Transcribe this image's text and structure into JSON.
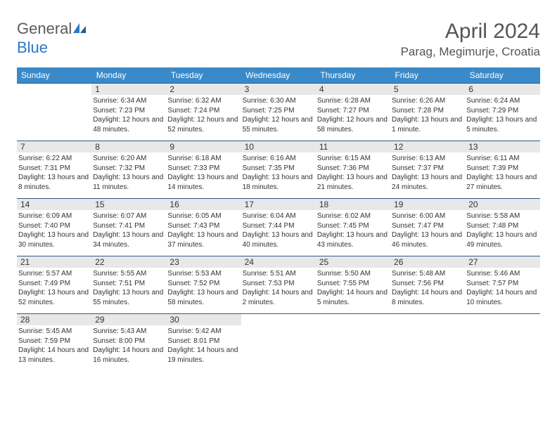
{
  "brand": {
    "part1": "General",
    "part2": "Blue"
  },
  "title": "April 2024",
  "location": "Parag, Megimurje, Croatia",
  "weekdays": [
    "Sunday",
    "Monday",
    "Tuesday",
    "Wednesday",
    "Thursday",
    "Friday",
    "Saturday"
  ],
  "colors": {
    "header_bg": "#3a8ac9",
    "daynum_bg": "#e8e8e8",
    "rule": "#2f5b8a",
    "text": "#333333",
    "brand_gray": "#5a5a5a",
    "brand_blue": "#2b78c2"
  },
  "typography": {
    "title_fontsize": 30,
    "location_fontsize": 17,
    "weekday_fontsize": 12,
    "daynum_fontsize": 12,
    "info_fontsize": 10
  },
  "grid": {
    "rows": 5,
    "cols": 7,
    "first_weekday_index": 1,
    "days_in_month": 30
  },
  "days": {
    "1": {
      "sunrise": "6:34 AM",
      "sunset": "7:23 PM",
      "daylight": "12 hours and 48 minutes."
    },
    "2": {
      "sunrise": "6:32 AM",
      "sunset": "7:24 PM",
      "daylight": "12 hours and 52 minutes."
    },
    "3": {
      "sunrise": "6:30 AM",
      "sunset": "7:25 PM",
      "daylight": "12 hours and 55 minutes."
    },
    "4": {
      "sunrise": "6:28 AM",
      "sunset": "7:27 PM",
      "daylight": "12 hours and 58 minutes."
    },
    "5": {
      "sunrise": "6:26 AM",
      "sunset": "7:28 PM",
      "daylight": "13 hours and 1 minute."
    },
    "6": {
      "sunrise": "6:24 AM",
      "sunset": "7:29 PM",
      "daylight": "13 hours and 5 minutes."
    },
    "7": {
      "sunrise": "6:22 AM",
      "sunset": "7:31 PM",
      "daylight": "13 hours and 8 minutes."
    },
    "8": {
      "sunrise": "6:20 AM",
      "sunset": "7:32 PM",
      "daylight": "13 hours and 11 minutes."
    },
    "9": {
      "sunrise": "6:18 AM",
      "sunset": "7:33 PM",
      "daylight": "13 hours and 14 minutes."
    },
    "10": {
      "sunrise": "6:16 AM",
      "sunset": "7:35 PM",
      "daylight": "13 hours and 18 minutes."
    },
    "11": {
      "sunrise": "6:15 AM",
      "sunset": "7:36 PM",
      "daylight": "13 hours and 21 minutes."
    },
    "12": {
      "sunrise": "6:13 AM",
      "sunset": "7:37 PM",
      "daylight": "13 hours and 24 minutes."
    },
    "13": {
      "sunrise": "6:11 AM",
      "sunset": "7:39 PM",
      "daylight": "13 hours and 27 minutes."
    },
    "14": {
      "sunrise": "6:09 AM",
      "sunset": "7:40 PM",
      "daylight": "13 hours and 30 minutes."
    },
    "15": {
      "sunrise": "6:07 AM",
      "sunset": "7:41 PM",
      "daylight": "13 hours and 34 minutes."
    },
    "16": {
      "sunrise": "6:05 AM",
      "sunset": "7:43 PM",
      "daylight": "13 hours and 37 minutes."
    },
    "17": {
      "sunrise": "6:04 AM",
      "sunset": "7:44 PM",
      "daylight": "13 hours and 40 minutes."
    },
    "18": {
      "sunrise": "6:02 AM",
      "sunset": "7:45 PM",
      "daylight": "13 hours and 43 minutes."
    },
    "19": {
      "sunrise": "6:00 AM",
      "sunset": "7:47 PM",
      "daylight": "13 hours and 46 minutes."
    },
    "20": {
      "sunrise": "5:58 AM",
      "sunset": "7:48 PM",
      "daylight": "13 hours and 49 minutes."
    },
    "21": {
      "sunrise": "5:57 AM",
      "sunset": "7:49 PM",
      "daylight": "13 hours and 52 minutes."
    },
    "22": {
      "sunrise": "5:55 AM",
      "sunset": "7:51 PM",
      "daylight": "13 hours and 55 minutes."
    },
    "23": {
      "sunrise": "5:53 AM",
      "sunset": "7:52 PM",
      "daylight": "13 hours and 58 minutes."
    },
    "24": {
      "sunrise": "5:51 AM",
      "sunset": "7:53 PM",
      "daylight": "14 hours and 2 minutes."
    },
    "25": {
      "sunrise": "5:50 AM",
      "sunset": "7:55 PM",
      "daylight": "14 hours and 5 minutes."
    },
    "26": {
      "sunrise": "5:48 AM",
      "sunset": "7:56 PM",
      "daylight": "14 hours and 8 minutes."
    },
    "27": {
      "sunrise": "5:46 AM",
      "sunset": "7:57 PM",
      "daylight": "14 hours and 10 minutes."
    },
    "28": {
      "sunrise": "5:45 AM",
      "sunset": "7:59 PM",
      "daylight": "14 hours and 13 minutes."
    },
    "29": {
      "sunrise": "5:43 AM",
      "sunset": "8:00 PM",
      "daylight": "14 hours and 16 minutes."
    },
    "30": {
      "sunrise": "5:42 AM",
      "sunset": "8:01 PM",
      "daylight": "14 hours and 19 minutes."
    }
  },
  "labels": {
    "sunrise": "Sunrise:",
    "sunset": "Sunset:",
    "daylight": "Daylight:"
  }
}
